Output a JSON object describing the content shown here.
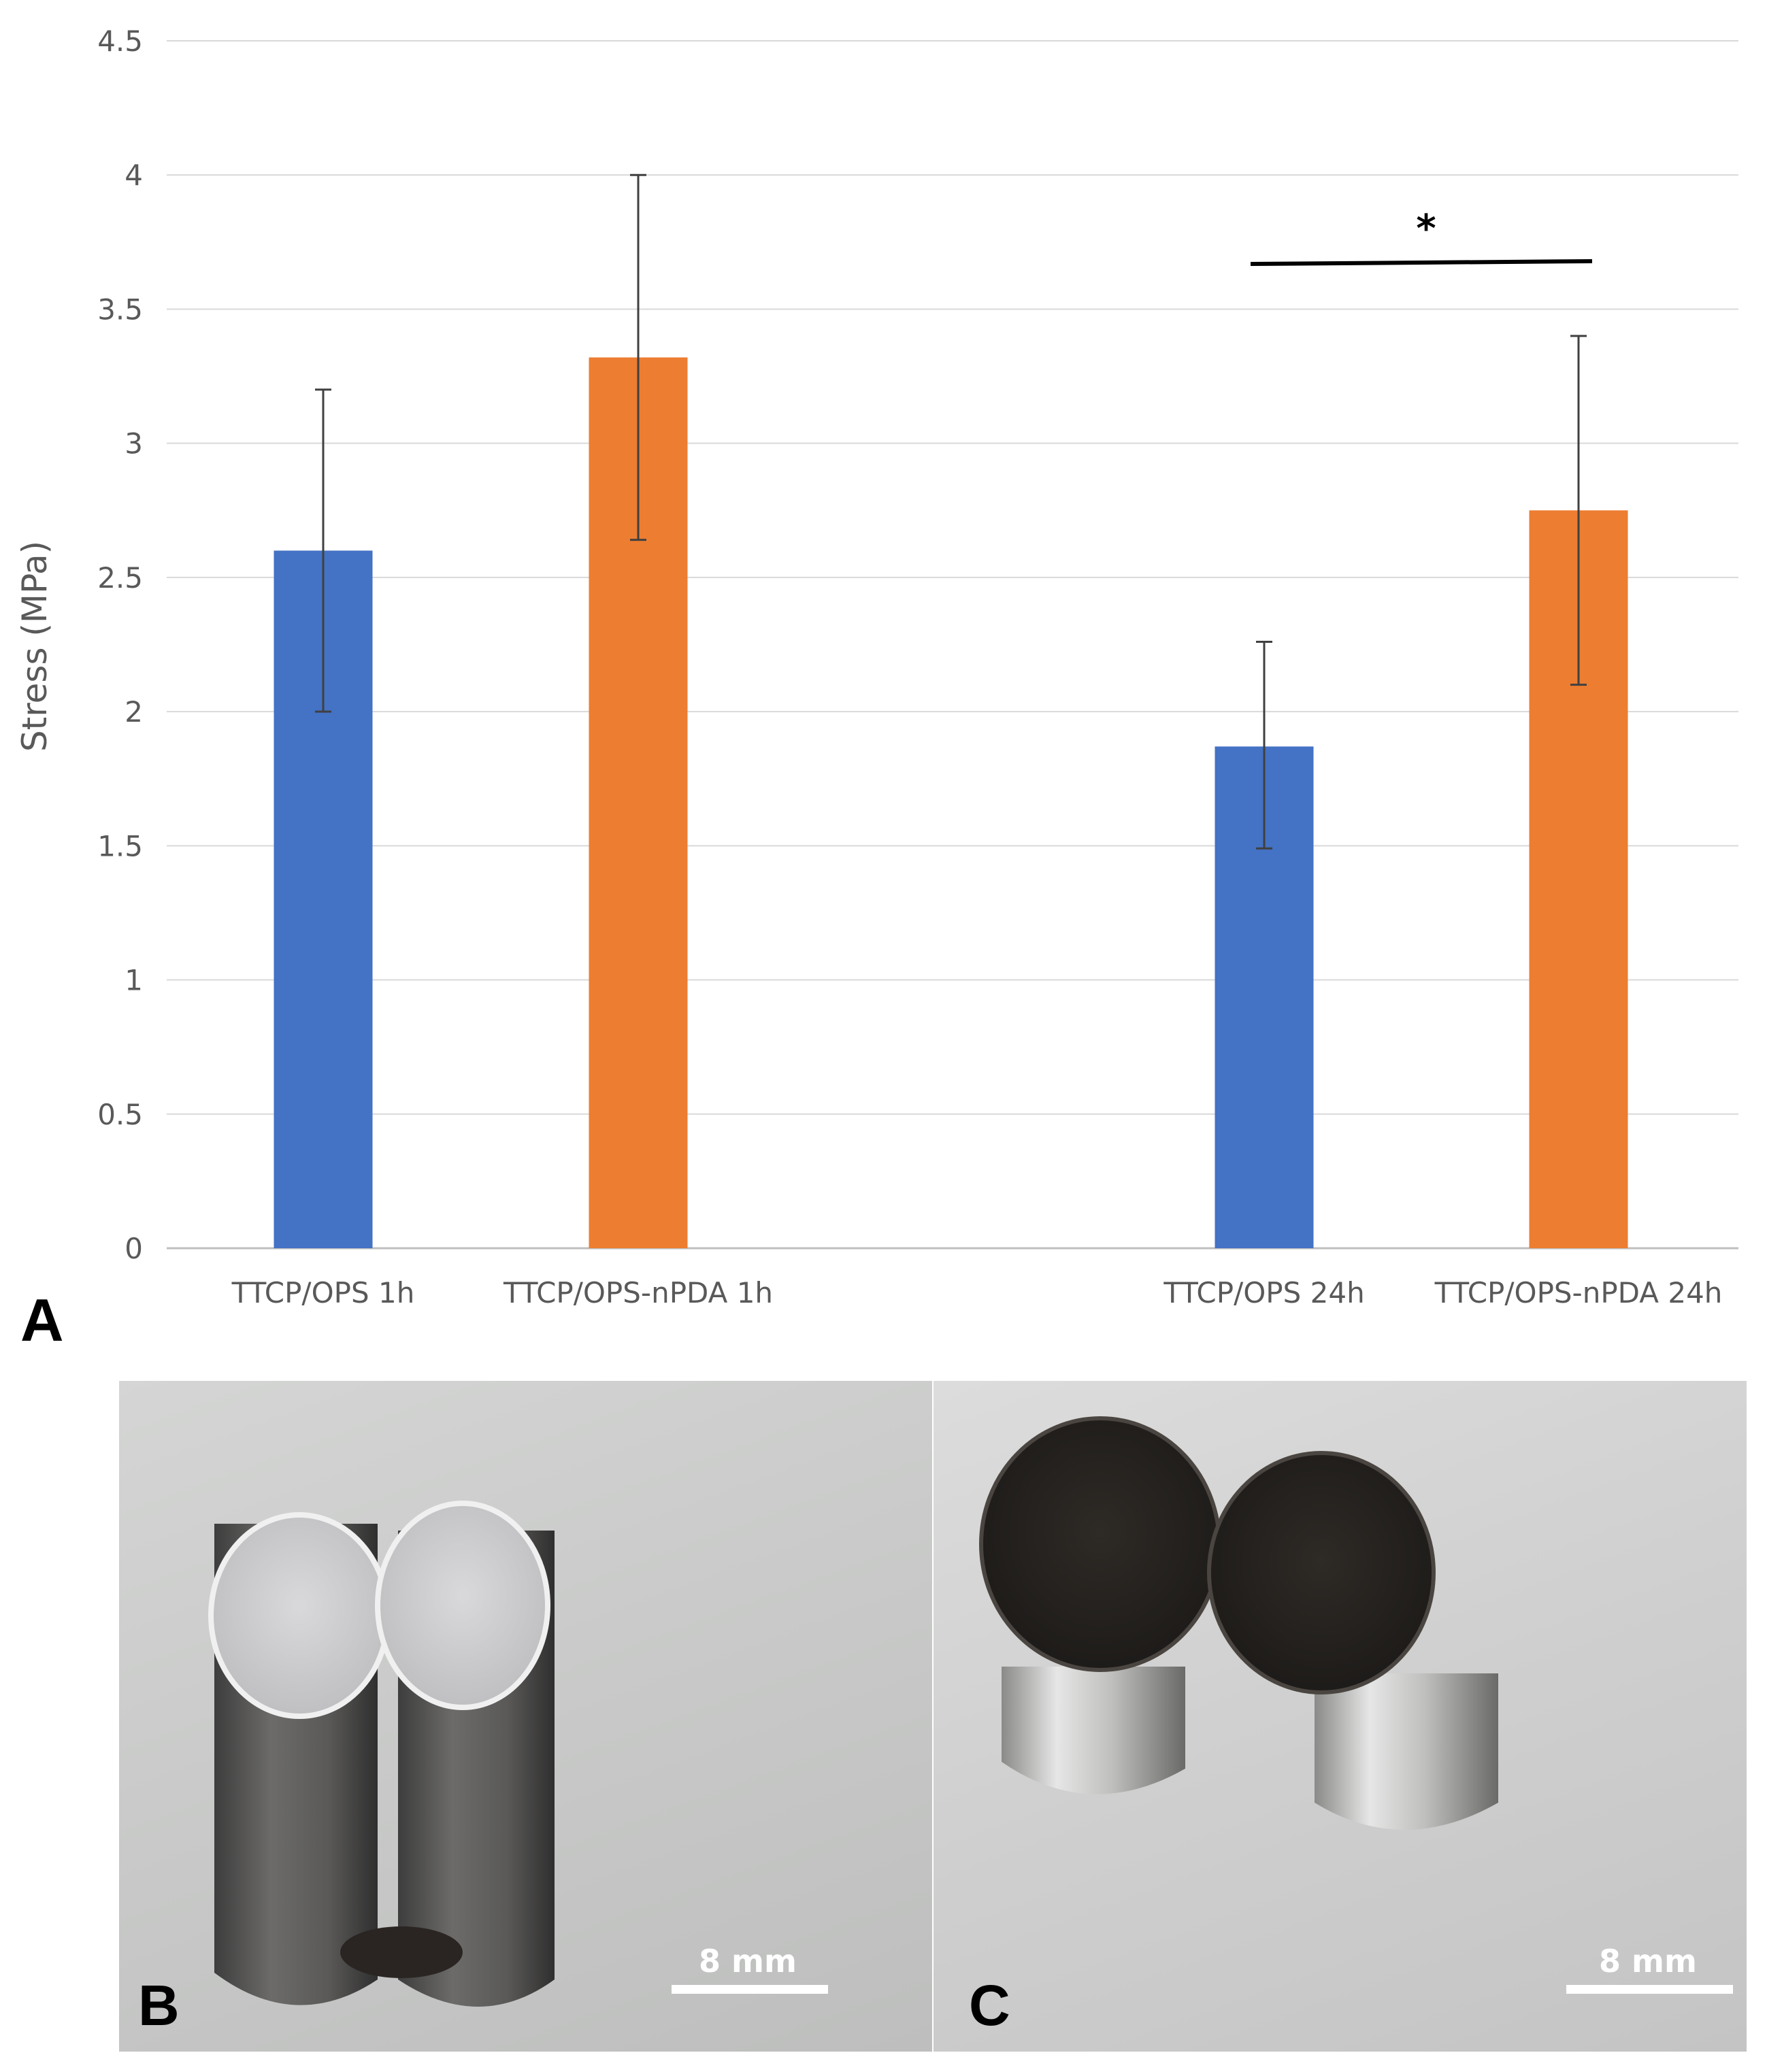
{
  "chart_data": {
    "type": "bar",
    "categories": [
      "TTCP/OPS 1h",
      "TTCP/OPS-nPDA 1h",
      "TTCP/OPS 24h",
      "TTCP/OPS-nPDA 24h"
    ],
    "values": [
      2.6,
      3.32,
      1.87,
      2.75
    ],
    "error_low": [
      2.0,
      2.64,
      1.49,
      2.1
    ],
    "error_high": [
      3.2,
      4.0,
      2.26,
      3.4
    ],
    "bar_colors": [
      "#4472C4",
      "#ED7D31",
      "#4472C4",
      "#ED7D31"
    ],
    "ylabel": "Stress (MPa)",
    "ylim": [
      0,
      4.5
    ],
    "yticks": [
      "0",
      "0.5",
      "1",
      "1.5",
      "2",
      "2.5",
      "3",
      "3.5",
      "4",
      "4.5"
    ],
    "grid": true,
    "annotation": "*",
    "significance_between": [
      "TTCP/OPS 24h",
      "TTCP/OPS-nPDA 24h"
    ]
  },
  "panels": {
    "a_label": "A",
    "b_label": "B",
    "c_label": "C"
  },
  "photos": {
    "b_scale_label": "8 mm",
    "c_scale_label": "8 mm"
  }
}
